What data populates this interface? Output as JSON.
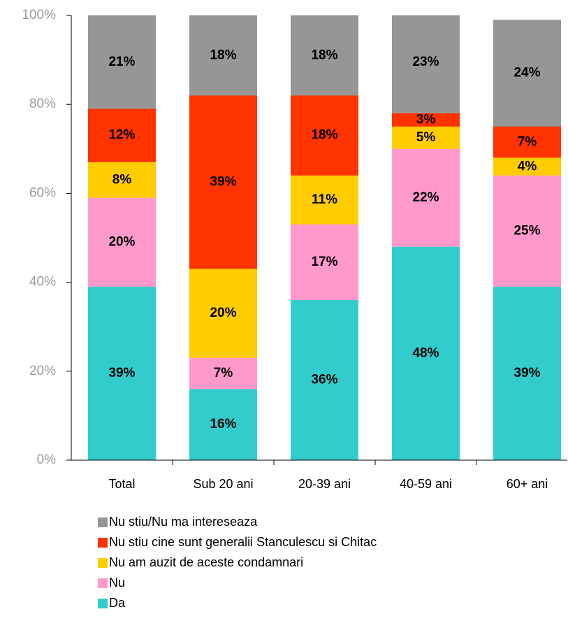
{
  "chart_data": {
    "type": "stacked_bar",
    "categories": [
      "Total",
      "Sub 20 ani",
      "20-39 ani",
      "40-59 ani",
      "60+ ani"
    ],
    "series": [
      {
        "name": "Da",
        "color": "#33cccc",
        "values": [
          39,
          16,
          36,
          48,
          39
        ],
        "value_labels": [
          "39%",
          "16%",
          "36%",
          "48%",
          "39%"
        ]
      },
      {
        "name": "Nu",
        "color": "#ff99cc",
        "values": [
          20,
          7,
          17,
          22,
          25
        ],
        "value_labels": [
          "20%",
          "7%",
          "17%",
          "22%",
          "25%"
        ]
      },
      {
        "name": "Nu am auzit de aceste condamnari",
        "color": "#ffcc00",
        "values": [
          8,
          20,
          11,
          5,
          4
        ],
        "value_labels": [
          "8%",
          "20%",
          "11%",
          "5%",
          "4%"
        ]
      },
      {
        "name": "Nu stiu cine sunt generalii Stanculescu si Chitac",
        "color": "#ff3300",
        "values": [
          12,
          39,
          18,
          3,
          7
        ],
        "value_labels": [
          "12%",
          "39%",
          "18%",
          "3%",
          "7%"
        ]
      },
      {
        "name": "Nu stiu/Nu ma intereseaza",
        "color": "#969696",
        "values": [
          21,
          18,
          18,
          23,
          24
        ],
        "value_labels": [
          "21%",
          "18%",
          "18%",
          "23%",
          "24%"
        ]
      }
    ],
    "ylim": [
      0,
      100
    ],
    "yticks": [
      {
        "value": 0,
        "label": "0%"
      },
      {
        "value": 20,
        "label": "20%"
      },
      {
        "value": 40,
        "label": "40%"
      },
      {
        "value": 60,
        "label": "60%"
      },
      {
        "value": 80,
        "label": "80%"
      },
      {
        "value": 100,
        "label": "100%"
      }
    ],
    "legend": "bottom"
  }
}
